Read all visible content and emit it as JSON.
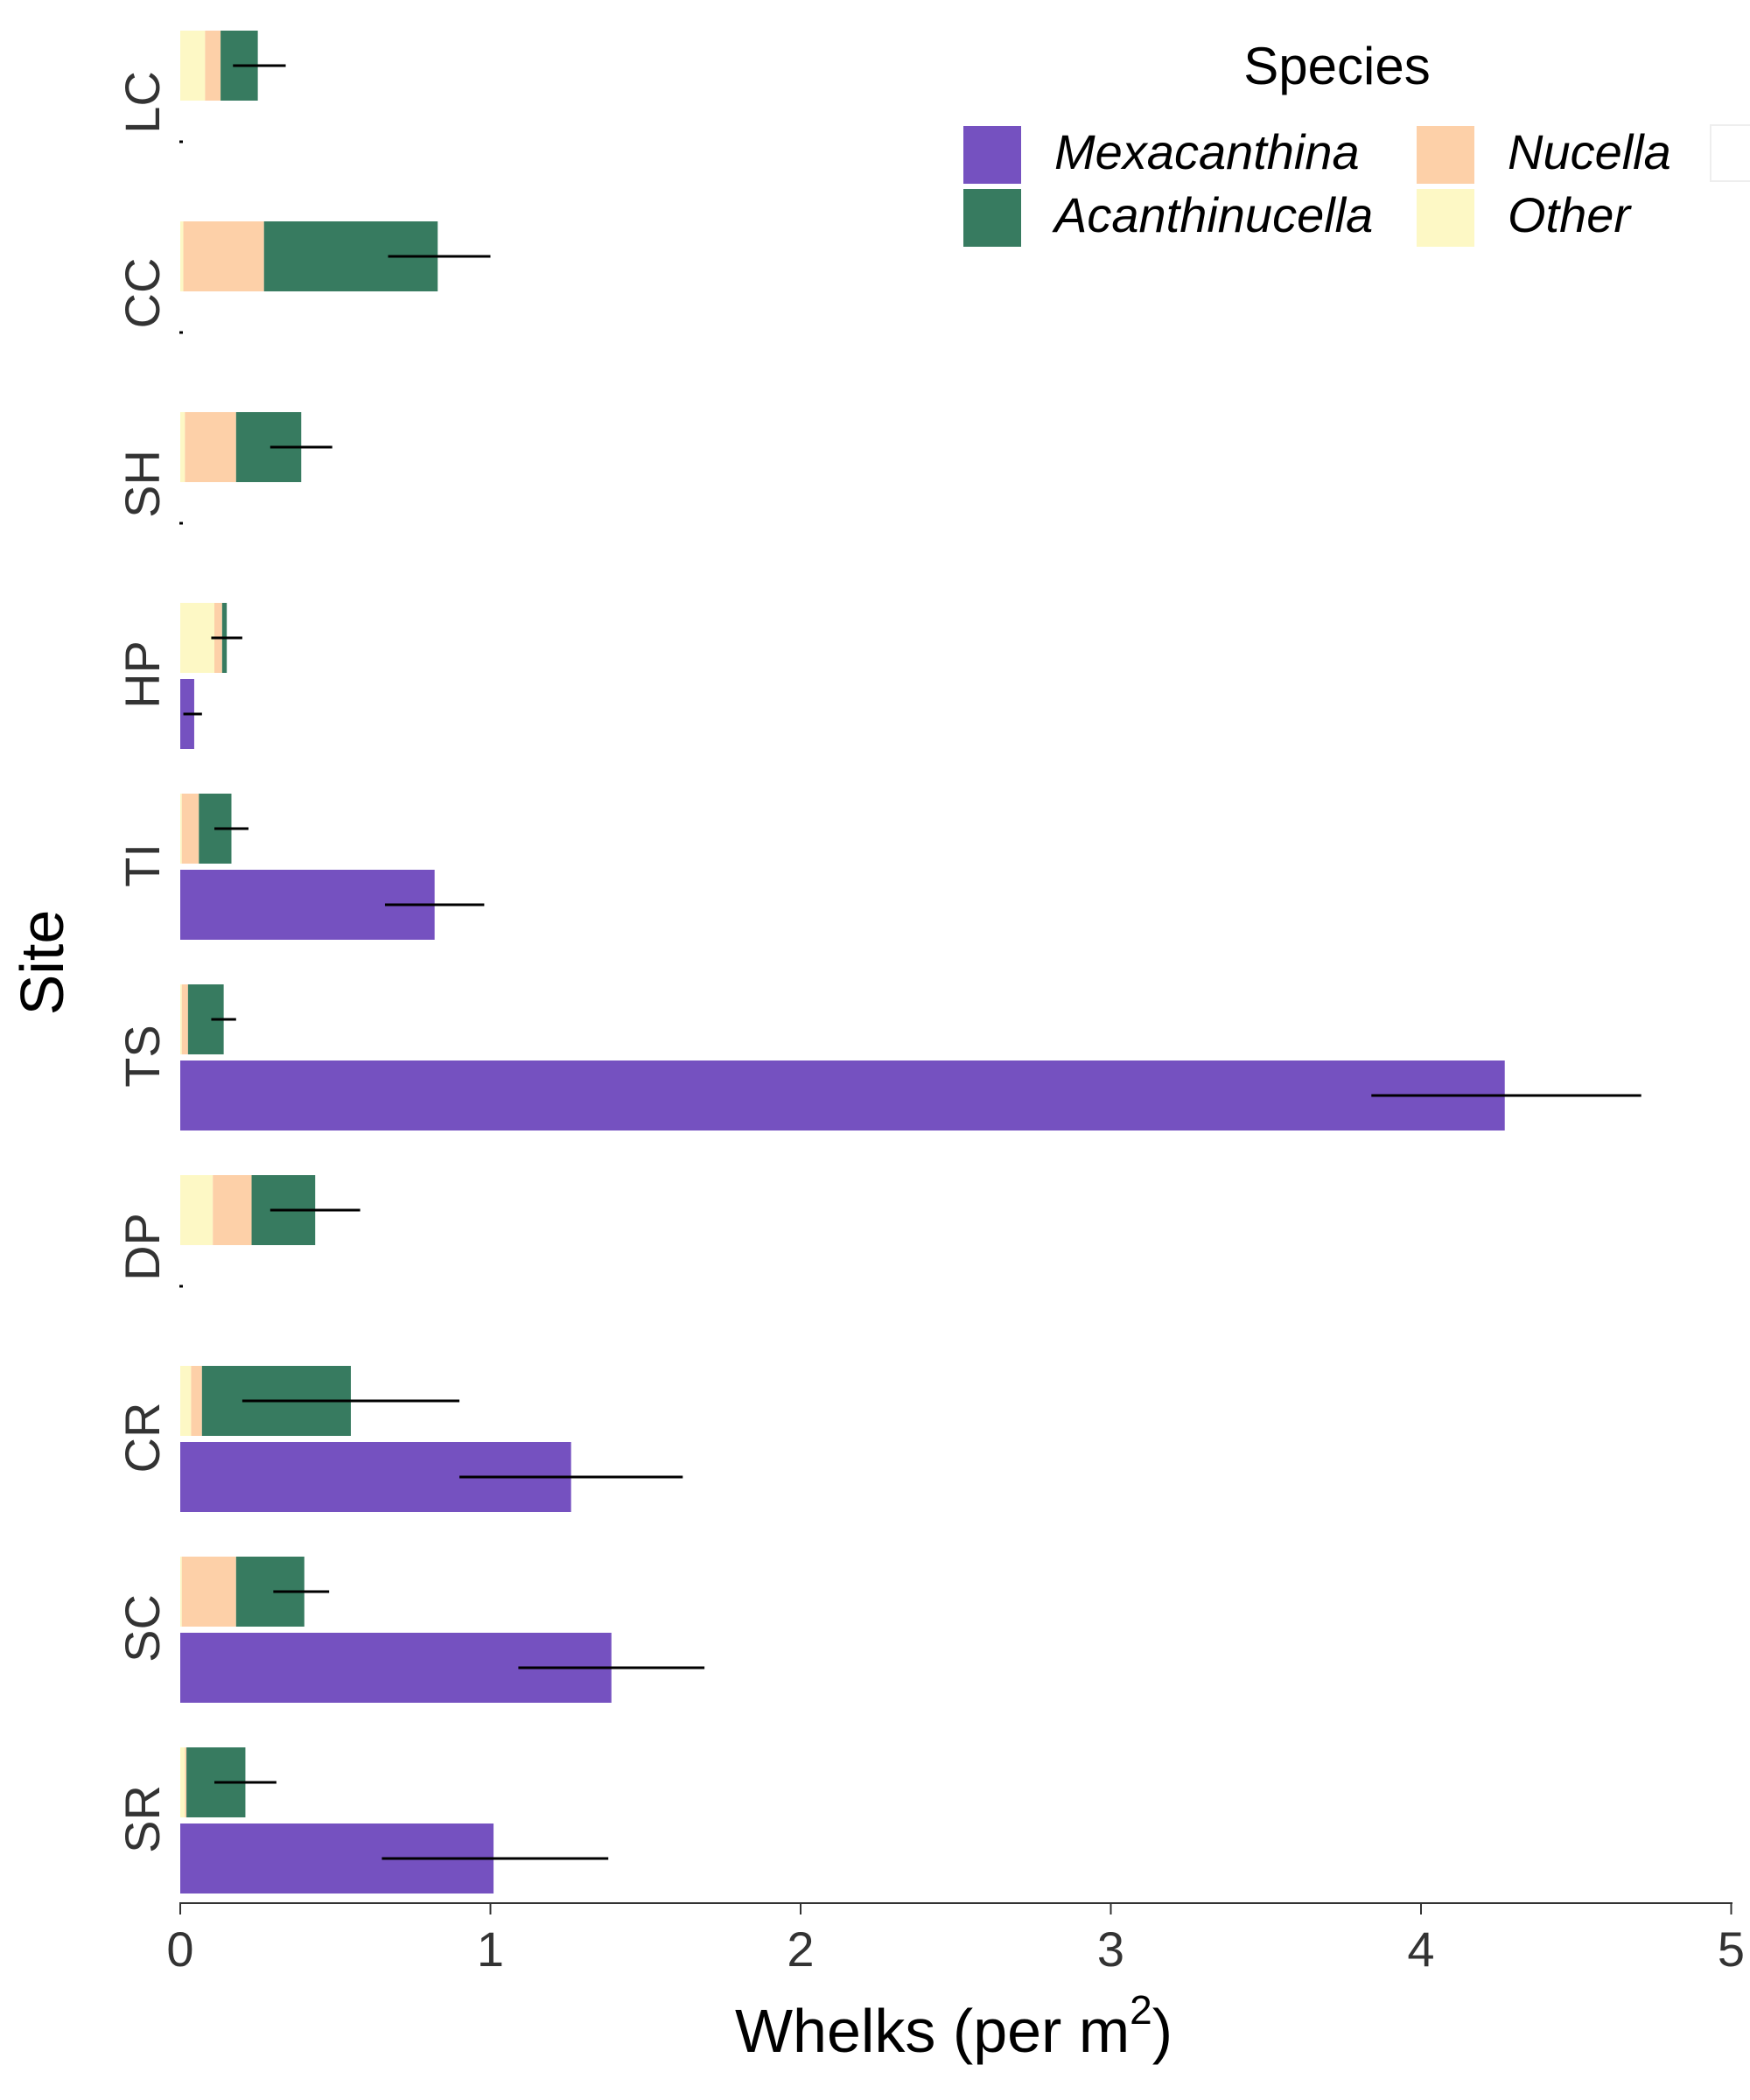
{
  "chart_data": {
    "type": "bar",
    "orientation": "horizontal",
    "stacked": true,
    "xlabel": "Whelks (per m",
    "xlabel_sup": "2",
    "xlabel_end": ")",
    "ylabel": "Site",
    "xlim": [
      0,
      5
    ],
    "xticks": [
      "0",
      "1",
      "2",
      "3",
      "4",
      "5"
    ],
    "grid": false,
    "legend_position": "top-right",
    "legend_title": "Species",
    "categories": [
      "LC",
      "CC",
      "SH",
      "HP",
      "TI",
      "TS",
      "DP",
      "CR",
      "SC",
      "SR"
    ],
    "series": [
      {
        "name": "Mexacanthina",
        "color": "#7551c0"
      },
      {
        "name": "Acanthinucella",
        "color": "#377b60"
      },
      {
        "name": "Nucella",
        "color": "#fdd0a8"
      },
      {
        "name": "Other",
        "color": "#fdf8c5"
      }
    ],
    "upper_bars": [
      {
        "site": "LC",
        "Other": 0.08,
        "Nucella": 0.05,
        "Acanthinucella": 0.12,
        "error": [
          0.17,
          0.34
        ]
      },
      {
        "site": "CC",
        "Other": 0.01,
        "Nucella": 0.26,
        "Acanthinucella": 0.56,
        "error": [
          0.67,
          1.0
        ]
      },
      {
        "site": "SH",
        "Other": 0.015,
        "Nucella": 0.165,
        "Acanthinucella": 0.21,
        "error": [
          0.29,
          0.49
        ]
      },
      {
        "site": "HP",
        "Other": 0.11,
        "Nucella": 0.025,
        "Acanthinucella": 0.015,
        "error": [
          0.1,
          0.2
        ]
      },
      {
        "site": "TI",
        "Other": 0.005,
        "Nucella": 0.055,
        "Acanthinucella": 0.105,
        "error": [
          0.11,
          0.22
        ]
      },
      {
        "site": "TS",
        "Other": 0.005,
        "Nucella": 0.02,
        "Acanthinucella": 0.115,
        "error": [
          0.1,
          0.18
        ]
      },
      {
        "site": "DP",
        "Other": 0.105,
        "Nucella": 0.125,
        "Acanthinucella": 0.205,
        "error": [
          0.29,
          0.58
        ]
      },
      {
        "site": "CR",
        "Other": 0.035,
        "Nucella": 0.035,
        "Acanthinucella": 0.48,
        "error": [
          0.2,
          0.9
        ]
      },
      {
        "site": "SC",
        "Other": 0.005,
        "Nucella": 0.175,
        "Acanthinucella": 0.22,
        "error": [
          0.3,
          0.48
        ]
      },
      {
        "site": "SR",
        "Other": 0.015,
        "Nucella": 0.005,
        "Acanthinucella": 0.19,
        "error": [
          0.11,
          0.31
        ]
      }
    ],
    "lower_bars": [
      {
        "site": "LC",
        "Mexacanthina": 0.0,
        "error": null
      },
      {
        "site": "CC",
        "Mexacanthina": 0.0,
        "error": null
      },
      {
        "site": "SH",
        "Mexacanthina": 0.0,
        "error": null
      },
      {
        "site": "HP",
        "Mexacanthina": 0.045,
        "error": [
          0.01,
          0.07
        ]
      },
      {
        "site": "TI",
        "Mexacanthina": 0.82,
        "error": [
          0.66,
          0.98
        ]
      },
      {
        "site": "TS",
        "Mexacanthina": 4.27,
        "error": [
          3.84,
          4.71
        ]
      },
      {
        "site": "DP",
        "Mexacanthina": 0.0,
        "error": null
      },
      {
        "site": "CR",
        "Mexacanthina": 1.26,
        "error": [
          0.9,
          1.62
        ]
      },
      {
        "site": "SC",
        "Mexacanthina": 1.39,
        "error": [
          1.09,
          1.69
        ]
      },
      {
        "site": "SR",
        "Mexacanthina": 1.01,
        "error": [
          0.65,
          1.38
        ]
      }
    ]
  }
}
